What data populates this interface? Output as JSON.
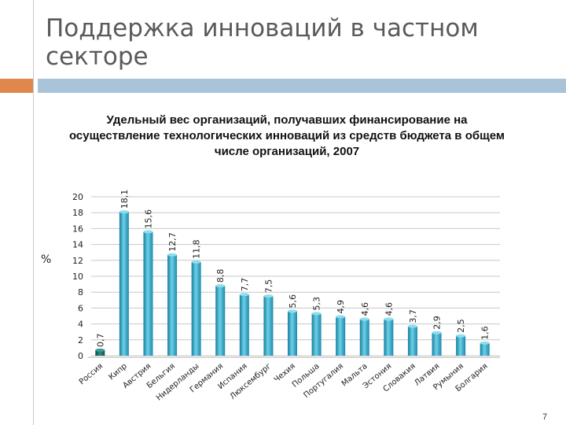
{
  "slide": {
    "title": "Поддержка инноваций в частном секторе",
    "page_number": "7",
    "accent_color": "#e0874c",
    "bar_color": "#a9c3d9"
  },
  "chart_data": {
    "type": "bar",
    "title": "Удельный вес организаций, получавших финансирование на осуществление технологических инноваций из средств бюджета в общем числе организаций, 2007",
    "ylabel": "%",
    "xlabel": "",
    "ylim": [
      0,
      20
    ],
    "yticks": [
      0,
      2,
      4,
      6,
      8,
      10,
      12,
      14,
      16,
      18,
      20
    ],
    "grid": true,
    "categories": [
      "Россия",
      "Кипр",
      "Австрия",
      "Бельгия",
      "Нидерланды",
      "Германия",
      "Испания",
      "Люксембург",
      "Чехия",
      "Польша",
      "Португалия",
      "Мальта",
      "Эстония",
      "Словакия",
      "Латвия",
      "Румыния",
      "Болгария"
    ],
    "values": [
      0.7,
      18.1,
      15.6,
      12.7,
      11.8,
      8.8,
      7.7,
      7.5,
      5.6,
      5.3,
      4.9,
      4.6,
      4.6,
      3.7,
      2.9,
      2.5,
      1.6
    ],
    "value_labels": [
      "0,7",
      "18,1",
      "15,6",
      "12,7",
      "11,8",
      "8,8",
      "7,7",
      "7,5",
      "5,6",
      "5,3",
      "4,9",
      "4,6",
      "4,6",
      "3,7",
      "2,9",
      "2,5",
      "1,6"
    ],
    "highlight_index": 0,
    "colors": {
      "bar": "#2aa3c4",
      "bar_dark": "#147f9e",
      "bar_light": "#6fd0e6",
      "highlight": "#1f6f6a",
      "grid": "#c8c8c8"
    }
  }
}
